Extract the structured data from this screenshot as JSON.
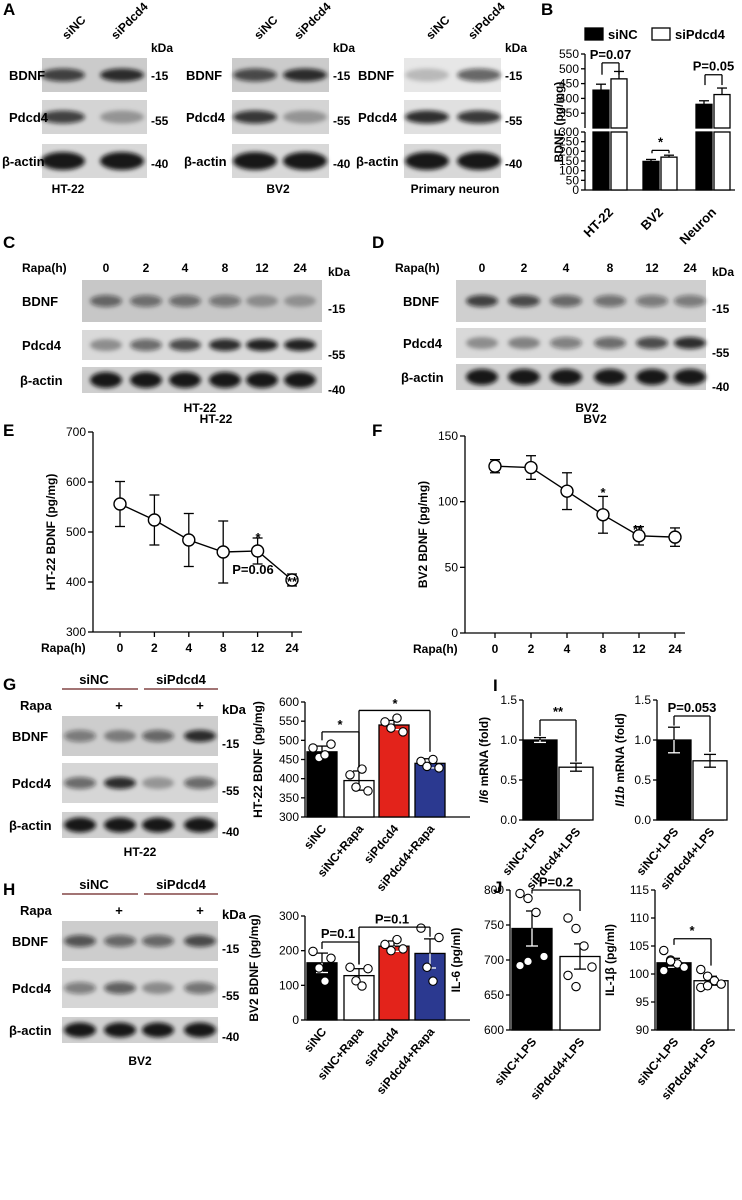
{
  "panels": {
    "A": {
      "label": "A",
      "kda": "kDa",
      "lane_labels": [
        "siNC",
        "siPdcd4"
      ],
      "blots": [
        "BDNF",
        "Pdcd4",
        "β-actin"
      ],
      "markers": [
        "-15",
        "-55",
        "-40"
      ],
      "groups": [
        "HT-22",
        "BV2",
        "Primary neuron"
      ]
    },
    "B": {
      "label": "B"
    },
    "C": {
      "label": "C",
      "row_title": "Rapa(h)",
      "timepoints": [
        "0",
        "2",
        "4",
        "8",
        "12",
        "24"
      ],
      "kda": "kDa",
      "blots": [
        "BDNF",
        "Pdcd4",
        "β-actin"
      ],
      "markers": [
        "-15",
        "-55",
        "-40"
      ],
      "cell": "HT-22"
    },
    "D": {
      "label": "D",
      "row_title": "Rapa(h)",
      "timepoints": [
        "0",
        "2",
        "4",
        "8",
        "12",
        "24"
      ],
      "kda": "kDa",
      "blots": [
        "BDNF",
        "Pdcd4",
        "β-actin"
      ],
      "markers": [
        "-15",
        "-55",
        "-40"
      ],
      "cell": "BV2"
    },
    "E": {
      "label": "E"
    },
    "F": {
      "label": "F"
    },
    "G": {
      "label": "G",
      "groups": [
        "siNC",
        "siPdcd4"
      ],
      "rapa_label": "Rapa",
      "plus": "+",
      "kda": "kDa",
      "blots": [
        "BDNF",
        "Pdcd4",
        "β-actin"
      ],
      "markers": [
        "-15",
        "-55",
        "-40"
      ],
      "cell": "HT-22"
    },
    "H": {
      "label": "H",
      "groups": [
        "siNC",
        "siPdcd4"
      ],
      "rapa_label": "Rapa",
      "plus": "+",
      "kda": "kDa",
      "blots": [
        "BDNF",
        "Pdcd4",
        "β-actin"
      ],
      "markers": [
        "-15",
        "-55",
        "-40"
      ],
      "cell": "BV2"
    },
    "I": {
      "label": "I"
    },
    "J": {
      "label": "J"
    }
  },
  "chart_data": [
    {
      "id": "B",
      "type": "bar",
      "legend": [
        "siNC",
        "siPdcd4"
      ],
      "legend_colors": [
        "#000000",
        "#ffffff"
      ],
      "ylabel": "BDNF (pg/mg)",
      "categories": [
        "HT-22",
        "BV2",
        "Neuron"
      ],
      "series": [
        {
          "name": "siNC",
          "values": [
            428,
            148,
            380
          ],
          "errors": [
            20,
            10,
            12
          ]
        },
        {
          "name": "siPdcd4",
          "values": [
            466,
            170,
            413
          ],
          "errors": [
            25,
            10,
            22
          ]
        }
      ],
      "broken_axis": {
        "lower": [
          0,
          300
        ],
        "upper": [
          300,
          550
        ]
      },
      "yticks": [
        "0",
        "50",
        "100",
        "150",
        "200",
        "250",
        "300",
        "350",
        "400",
        "450",
        "500",
        "550"
      ],
      "annotations": [
        "P=0.07",
        "*",
        "P=0.05"
      ]
    },
    {
      "id": "E",
      "type": "line",
      "title": "HT-22",
      "xlabel": "Rapa(h)",
      "ylabel": "HT-22 BDNF (pg/mg)",
      "x": [
        "0",
        "2",
        "4",
        "8",
        "12",
        "24"
      ],
      "y": [
        556,
        524,
        484,
        460,
        462,
        404
      ],
      "errors": [
        45,
        50,
        53,
        62,
        26,
        12
      ],
      "ylim": [
        300,
        700
      ],
      "yticks": [
        "300",
        "400",
        "500",
        "600",
        "700"
      ],
      "annotations": [
        "P=0.06",
        "*",
        "**"
      ]
    },
    {
      "id": "F",
      "type": "line",
      "title": "BV2",
      "xlabel": "Rapa(h)",
      "ylabel": "BV2 BDNF (pg/mg)",
      "x": [
        "0",
        "2",
        "4",
        "8",
        "12",
        "24"
      ],
      "y": [
        127,
        126,
        108,
        90,
        74,
        73
      ],
      "errors": [
        5,
        9,
        14,
        14,
        7,
        7
      ],
      "ylim": [
        0,
        150
      ],
      "yticks": [
        "0",
        "50",
        "100",
        "150"
      ],
      "annotations": [
        "*",
        "**"
      ]
    },
    {
      "id": "G",
      "type": "bar",
      "ylabel": "HT-22 BDNF (pg/mg)",
      "categories": [
        "siNC",
        "siNC+Rapa",
        "siPdcd4",
        "siPdcd4+Rapa"
      ],
      "values": [
        470,
        395,
        540,
        440
      ],
      "errors": [
        15,
        25,
        12,
        12
      ],
      "colors": [
        "#000000",
        "#ffffff",
        "#e3231b",
        "#2b3990"
      ],
      "points": [
        [
          480,
          455,
          462,
          490
        ],
        [
          410,
          378,
          425,
          368
        ],
        [
          548,
          532,
          558,
          522
        ],
        [
          445,
          432,
          450,
          428
        ]
      ],
      "ylim": [
        300,
        600
      ],
      "yticks": [
        "300",
        "350",
        "400",
        "450",
        "500",
        "550",
        "600"
      ],
      "annotations": [
        "*",
        "*"
      ]
    },
    {
      "id": "H",
      "type": "bar",
      "ylabel": "BV2 BDNF (pg/mg)",
      "categories": [
        "siNC",
        "siNC+Rapa",
        "siPdcd4",
        "siPdcd4+Rapa"
      ],
      "values": [
        165,
        128,
        213,
        192
      ],
      "errors": [
        28,
        20,
        15,
        42
      ],
      "colors": [
        "#000000",
        "#ffffff",
        "#e3231b",
        "#2b3990"
      ],
      "points": [
        [
          198,
          150,
          112,
          178
        ],
        [
          152,
          113,
          98,
          148
        ],
        [
          218,
          200,
          232,
          205
        ],
        [
          265,
          152,
          112,
          238
        ]
      ],
      "ylim": [
        0,
        300
      ],
      "yticks": [
        "0",
        "100",
        "200",
        "300"
      ],
      "annotations": [
        "P=0.1",
        "P=0.1"
      ]
    },
    {
      "id": "I1",
      "type": "bar",
      "ylabel_gene": "Il6",
      "ylabel_rest": " mRNA (fold)",
      "categories": [
        "siNC+LPS",
        "siPdcd4+LPS"
      ],
      "values": [
        1.0,
        0.66
      ],
      "errors": [
        0.03,
        0.05
      ],
      "colors": [
        "#000000",
        "#ffffff"
      ],
      "ylim": [
        0,
        1.5
      ],
      "yticks": [
        "0.0",
        "0.5",
        "1.0",
        "1.5"
      ],
      "annotations": [
        "**"
      ]
    },
    {
      "id": "I2",
      "type": "bar",
      "ylabel_gene": "Il1b",
      "ylabel_rest": " mRNA (fold)",
      "categories": [
        "siNC+LPS",
        "siPdcd4+LPS"
      ],
      "values": [
        1.0,
        0.74
      ],
      "errors": [
        0.16,
        0.08
      ],
      "colors": [
        "#000000",
        "#ffffff"
      ],
      "ylim": [
        0,
        1.5
      ],
      "yticks": [
        "0.0",
        "0.5",
        "1.0",
        "1.5"
      ],
      "annotations": [
        "P=0.053"
      ]
    },
    {
      "id": "J1",
      "type": "bar",
      "ylabel": "IL-6 (pg/ml)",
      "categories": [
        "siNC+LPS",
        "siPdcd4+LPS"
      ],
      "values": [
        745,
        705
      ],
      "errors": [
        25,
        18
      ],
      "colors": [
        "#000000",
        "#ffffff"
      ],
      "points": [
        [
          795,
          788,
          768,
          705,
          692,
          698
        ],
        [
          760,
          745,
          720,
          690,
          678,
          662
        ]
      ],
      "ylim": [
        600,
        800
      ],
      "yticks": [
        "600",
        "650",
        "700",
        "750",
        "800"
      ],
      "annotations": [
        "P=0.2"
      ]
    },
    {
      "id": "J2",
      "type": "bar",
      "ylabel": "IL-1β (pg/ml)",
      "categories": [
        "siNC+LPS",
        "siPdcd4+LPS"
      ],
      "values": [
        102,
        98.8
      ],
      "errors": [
        0.8,
        0.8
      ],
      "colors": [
        "#000000",
        "#ffffff"
      ],
      "points": [
        [
          104.2,
          102.5,
          101.8,
          101.2,
          100.6,
          102.3
        ],
        [
          100.8,
          99.6,
          98.8,
          98.2,
          97.6,
          97.9
        ]
      ],
      "ylim": [
        90,
        115
      ],
      "yticks": [
        "90",
        "95",
        "100",
        "105",
        "110",
        "115"
      ],
      "annotations": [
        "*"
      ]
    }
  ]
}
